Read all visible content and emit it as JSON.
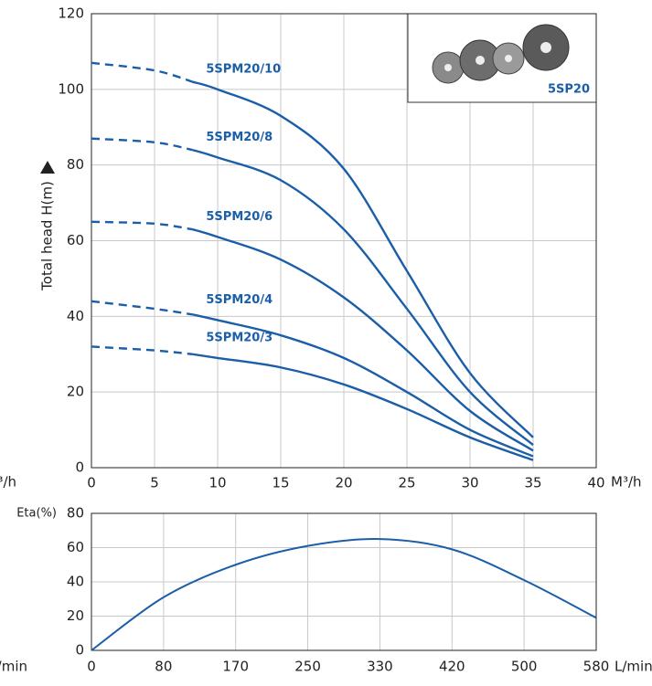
{
  "chart_data": [
    {
      "type": "line",
      "ylabel": "Total head H(m)",
      "xlabel": "M³/h",
      "x": [
        0,
        5,
        8,
        10,
        15,
        20,
        25,
        30,
        35
      ],
      "xlim": [
        0,
        40
      ],
      "xticks": [
        0,
        5,
        10,
        15,
        20,
        25,
        30,
        35,
        40
      ],
      "ylim": [
        0,
        120
      ],
      "yticks": [
        0,
        20,
        40,
        60,
        80,
        100,
        120
      ],
      "dashed_xlim": [
        0,
        8
      ],
      "grid": true,
      "inset_label": "5SP20",
      "series": [
        {
          "name": "5SPM20/10",
          "color": "#1b5ea8",
          "values": [
            107,
            105,
            102,
            100,
            93,
            79,
            52,
            25,
            8
          ]
        },
        {
          "name": "5SPM20/8",
          "color": "#1b5ea8",
          "values": [
            87,
            86,
            84,
            82,
            76,
            63,
            42,
            20,
            6
          ]
        },
        {
          "name": "5SPM20/6",
          "color": "#1b5ea8",
          "values": [
            65,
            64.5,
            63,
            61,
            55,
            45,
            31,
            15,
            4.5
          ]
        },
        {
          "name": "5SPM20/4",
          "color": "#1b5ea8",
          "values": [
            44,
            42,
            40.5,
            39,
            35,
            29,
            20,
            10,
            3
          ]
        },
        {
          "name": "5SPM20/3",
          "color": "#1b5ea8",
          "values": [
            32,
            31,
            30,
            29,
            26.5,
            22,
            15.5,
            8,
            2
          ]
        }
      ]
    },
    {
      "type": "line",
      "ylabel": "Eta(%)",
      "xlabel": "L/min",
      "categories": [
        "0",
        "80",
        "170",
        "250",
        "330",
        "420",
        "500",
        "580"
      ],
      "values": [
        0,
        31,
        50,
        61,
        65,
        59,
        41,
        19
      ],
      "color": "#1b5ea8",
      "ylim": [
        0,
        80
      ],
      "yticks": [
        0,
        20,
        40,
        60,
        80
      ],
      "grid": true
    }
  ]
}
